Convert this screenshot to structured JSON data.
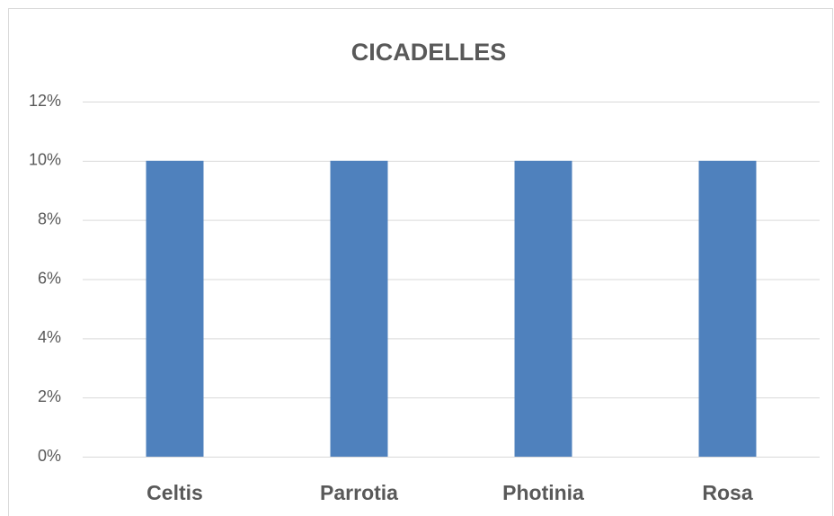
{
  "chart_data": {
    "type": "bar",
    "title": "CICADELLES",
    "categories": [
      "Celtis",
      "Parrotia",
      "Photinia",
      "Rosa"
    ],
    "values": [
      10,
      10,
      10,
      10
    ],
    "color": "#4f81bd",
    "ylim": [
      0,
      12
    ],
    "yticks": [
      {
        "value": 0,
        "label": "0%"
      },
      {
        "value": 2,
        "label": "2%"
      },
      {
        "value": 4,
        "label": "4%"
      },
      {
        "value": 6,
        "label": "6%"
      },
      {
        "value": 8,
        "label": "8%"
      },
      {
        "value": 10,
        "label": "10%"
      },
      {
        "value": 12,
        "label": "12%"
      }
    ],
    "grid": true
  }
}
